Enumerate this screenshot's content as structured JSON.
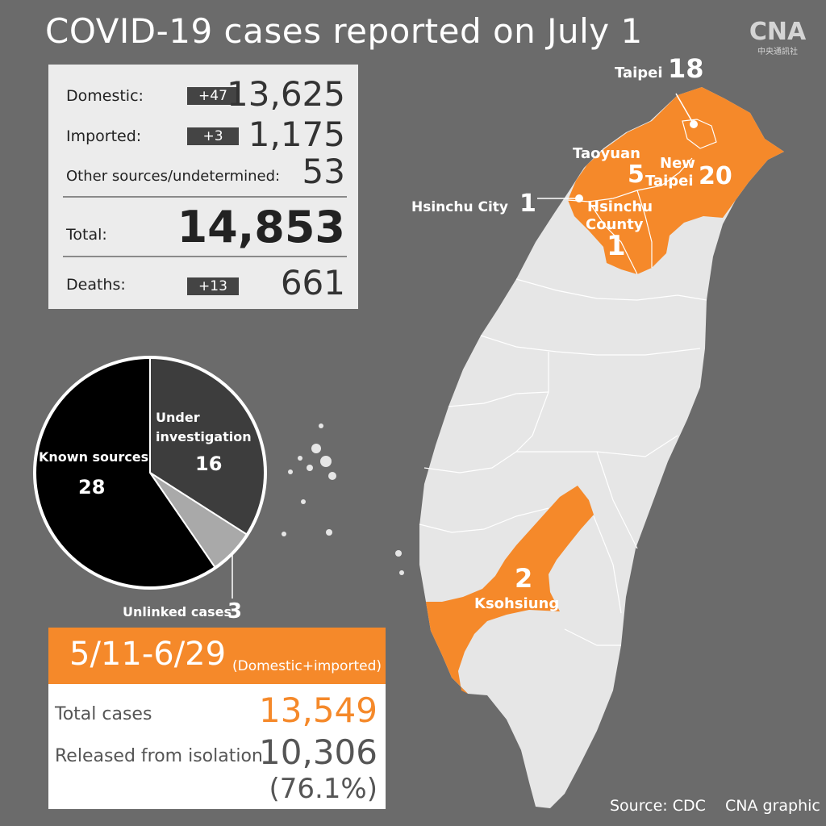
{
  "title": "COVID-19 cases reported on July 1",
  "logo": {
    "mark": "CNA",
    "sub": "中央通訊社"
  },
  "stats": {
    "domestic": {
      "label": "Domestic:",
      "delta": "+47",
      "value": "13,625"
    },
    "imported": {
      "label": "Imported:",
      "delta": "+3",
      "value": "1,175"
    },
    "other": {
      "label": "Other sources/undetermined:",
      "value": "53"
    },
    "total": {
      "label": "Total:",
      "value": "14,853"
    },
    "deaths": {
      "label": "Deaths:",
      "delta": "+13",
      "value": "661"
    }
  },
  "chart_data": {
    "type": "pie",
    "slices": [
      {
        "name": "Under",
        "name2": "investigation",
        "value": 16,
        "color": "#3d3d3d"
      },
      {
        "name": "Unlinked cases",
        "value": 3,
        "color": "#a9a9a9"
      },
      {
        "name": "Known sources",
        "value": 28,
        "color": "#000000"
      }
    ]
  },
  "map": {
    "land_color": "#e6e6e6",
    "highlight_color": "#f5892a",
    "regions": [
      {
        "name": "Taipei",
        "count": "18"
      },
      {
        "name": "Taoyuan",
        "count": "5"
      },
      {
        "name": "New",
        "name2": "Taipei",
        "count": "20"
      },
      {
        "name": "Hsinchu City",
        "count": "1"
      },
      {
        "name": "Hsinchu",
        "name2": "County",
        "count": "1"
      },
      {
        "name": "Ksohsiung",
        "count": "2"
      }
    ]
  },
  "period": {
    "range": "5/11-6/29",
    "note": "(Domestic+imported)",
    "total_label": "Total cases",
    "total_value": "13,549",
    "released_label": "Released from isolation",
    "released_value": "10,306",
    "released_pct": "(76.1%)"
  },
  "source": "Source: CDC    CNA graphic"
}
